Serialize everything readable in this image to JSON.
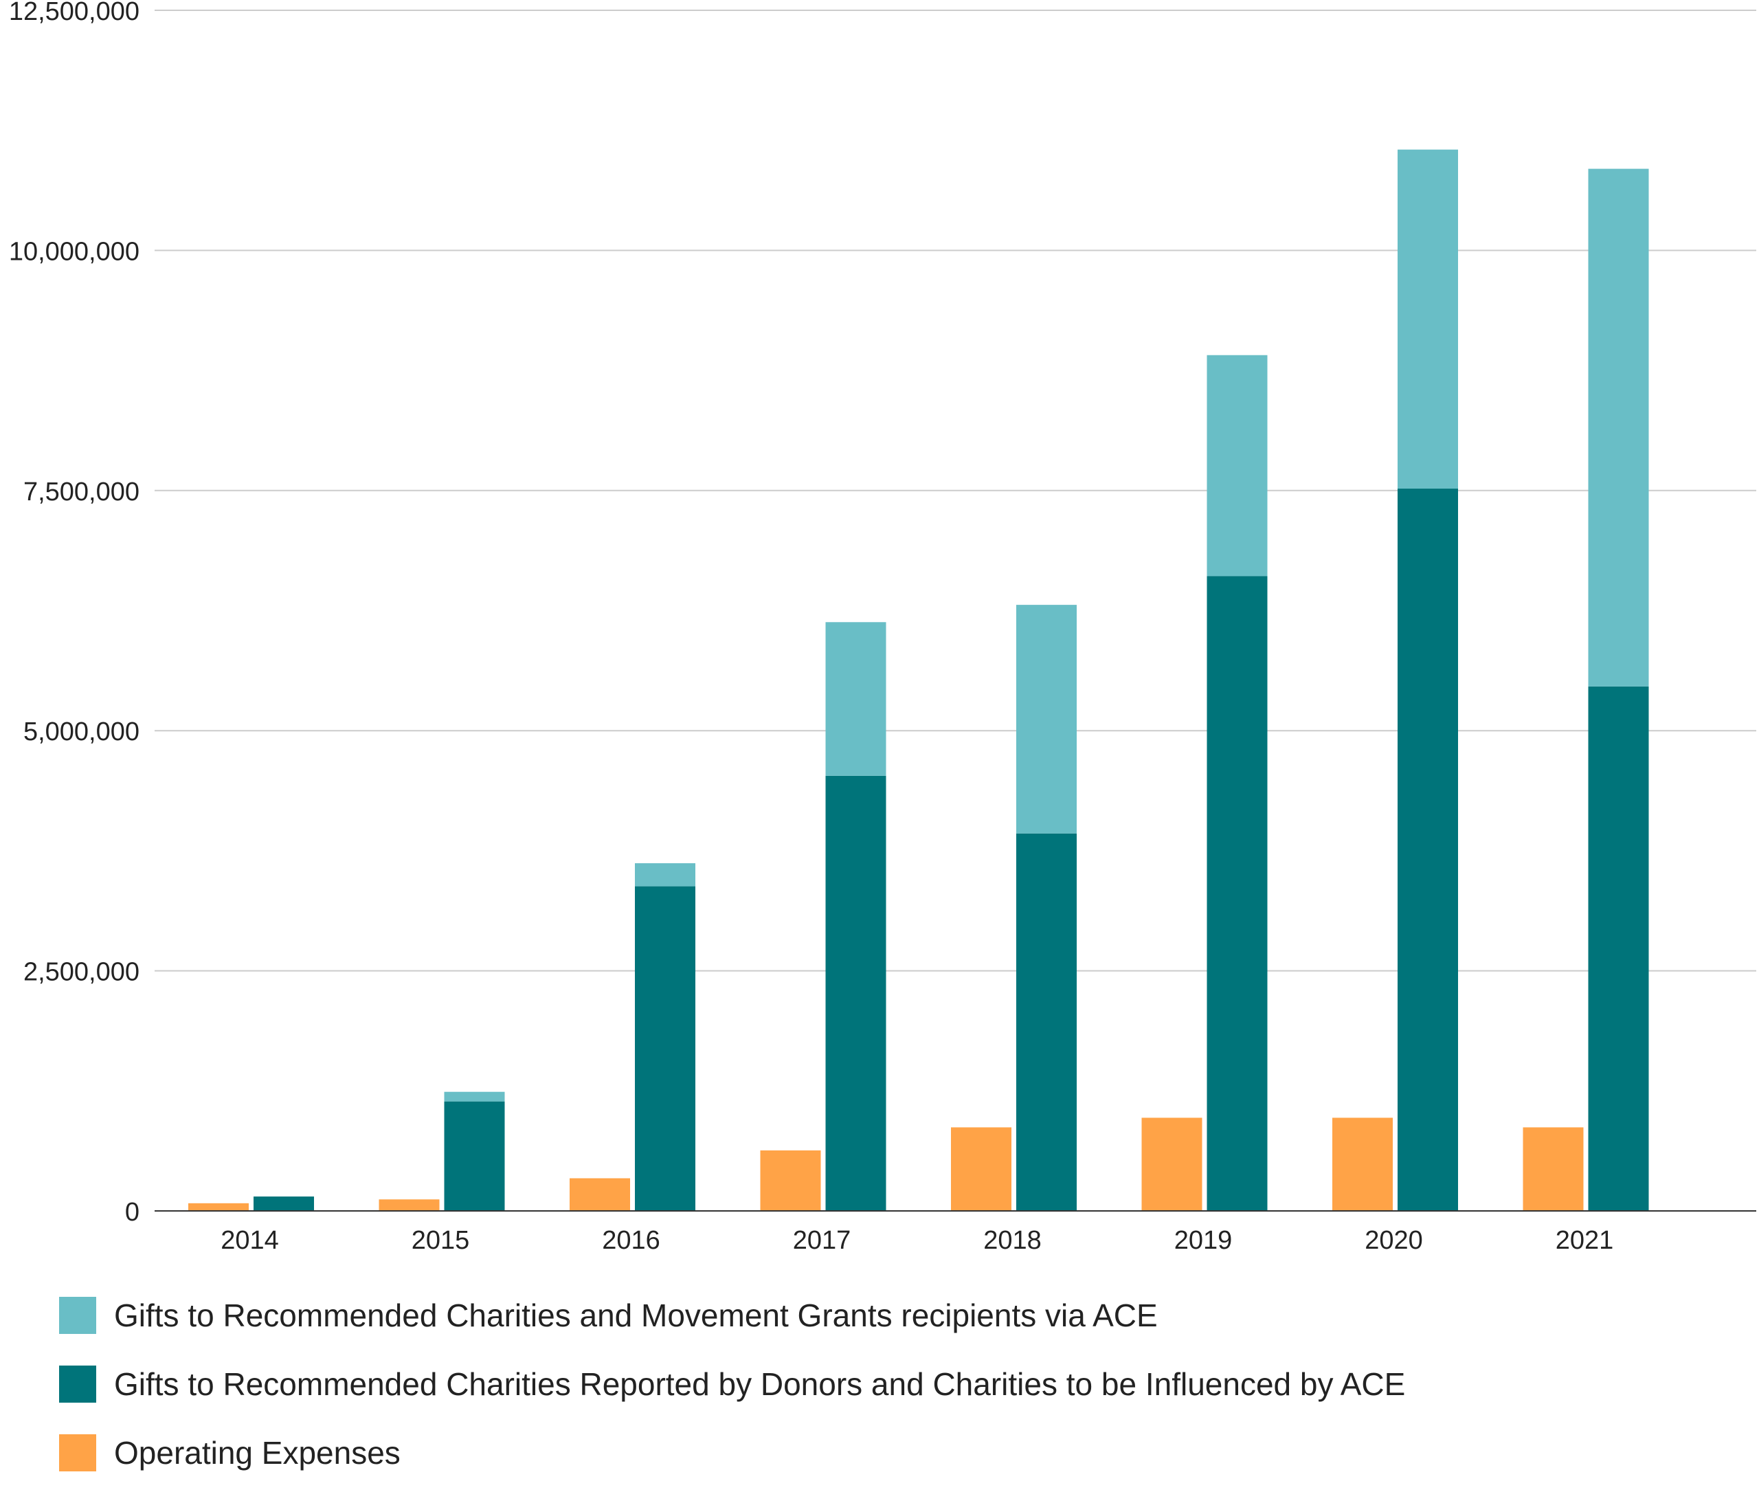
{
  "chart_data": {
    "type": "bar",
    "stacked_series": [
      "Gifts to Recommended Charities Reported by Donors and Charities to be Influenced by ACE",
      "Gifts to Recommended Charities and Movement Grants recipients via ACE"
    ],
    "categories": [
      "2014",
      "2015",
      "2016",
      "2017",
      "2018",
      "2019",
      "2020",
      "2021"
    ],
    "series": [
      {
        "name": "Gifts to Recommended Charities and Movement Grants recipients via ACE",
        "color": "#69BEC6",
        "values": [
          0,
          100000,
          240000,
          1600000,
          2380000,
          2300000,
          3530000,
          5390000
        ]
      },
      {
        "name": "Gifts to Recommended Charities Reported by Donors and Charities to be Influenced by ACE",
        "color": "#00747A",
        "values": [
          150000,
          1140000,
          3380000,
          4530000,
          3930000,
          6610000,
          7520000,
          5460000
        ]
      },
      {
        "name": "Operating Expenses",
        "color": "#FFA347",
        "values": [
          80000,
          120000,
          340000,
          630000,
          870000,
          970000,
          970000,
          870000
        ]
      }
    ],
    "ylim": [
      0,
      12500000
    ],
    "yticks": [
      0,
      2500000,
      5000000,
      7500000,
      10000000,
      12500000
    ],
    "ytick_labels": [
      "0",
      "2,500,000",
      "5,000,000",
      "7,500,000",
      "10,000,000",
      "12,500,000"
    ],
    "title": "",
    "xlabel": "",
    "ylabel": "",
    "grid": true,
    "legend_position": "bottom",
    "legend": [
      {
        "label": "Gifts to Recommended Charities and Movement Grants recipients via ACE",
        "color": "#69BEC6"
      },
      {
        "label": "Gifts to Recommended Charities Reported by Donors and Charities to be Influenced by ACE",
        "color": "#00747A"
      },
      {
        "label": "Operating Expenses",
        "color": "#FFA347"
      }
    ]
  }
}
